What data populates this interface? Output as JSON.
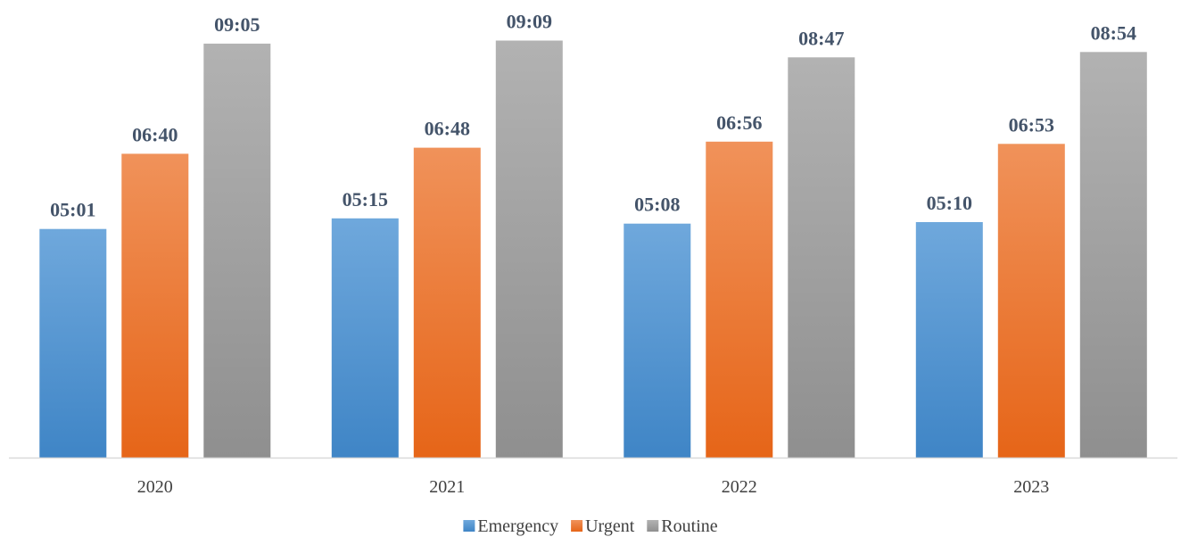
{
  "chart_data": {
    "type": "bar",
    "categories": [
      "2020",
      "2021",
      "2022",
      "2023"
    ],
    "series": [
      {
        "name": "Emergency",
        "values": [
          "05:01",
          "05:15",
          "05:08",
          "05:10"
        ],
        "color_top": "#6fa8dc",
        "color_bottom": "#3f85c6"
      },
      {
        "name": "Urgent",
        "values": [
          "06:40",
          "06:48",
          "06:56",
          "06:53"
        ],
        "color_top": "#f0925a",
        "color_bottom": "#e66518"
      },
      {
        "name": "Routine",
        "values": [
          "09:05",
          "09:09",
          "08:47",
          "08:54"
        ],
        "color_top": "#b2b2b2",
        "color_bottom": "#8f8f8f"
      }
    ],
    "ylim": [
      "00:00",
      "09:39"
    ],
    "grid": false,
    "legend": "bottom",
    "data_label_color": "#44546a",
    "axis_color": "#d9d9d9"
  }
}
